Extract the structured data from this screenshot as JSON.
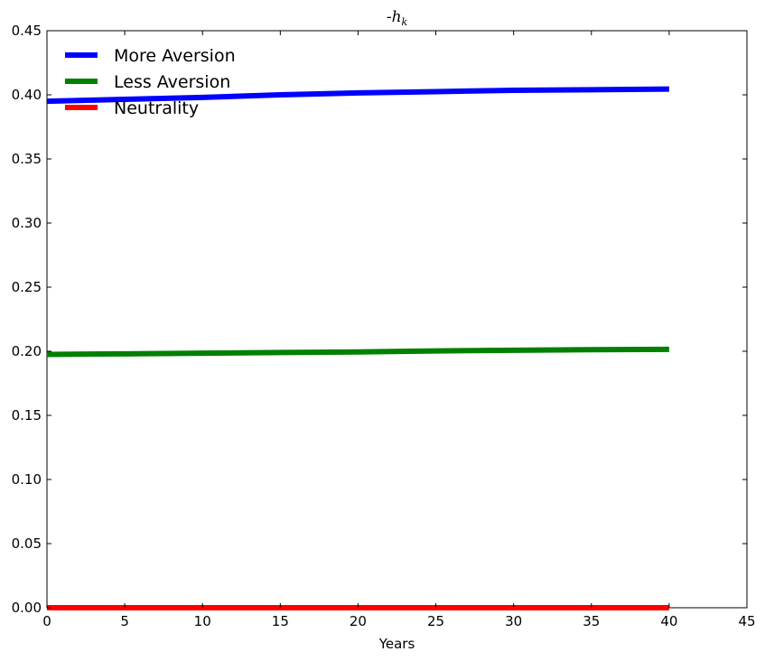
{
  "chart_data": {
    "type": "line",
    "title": "-h_k",
    "title_parts": {
      "prefix": "-",
      "base": "h",
      "subscript": "k"
    },
    "xlabel": "Years",
    "ylabel": "",
    "xlim": [
      0,
      45
    ],
    "ylim": [
      0,
      0.45
    ],
    "xticks": [
      0,
      5,
      10,
      15,
      20,
      25,
      30,
      35,
      40,
      45
    ],
    "yticks": [
      0.0,
      0.05,
      0.1,
      0.15,
      0.2,
      0.25,
      0.3,
      0.35,
      0.4,
      0.45
    ],
    "xtick_labels": [
      "0",
      "5",
      "10",
      "15",
      "20",
      "25",
      "30",
      "35",
      "40",
      "45"
    ],
    "ytick_labels": [
      "0.00",
      "0.05",
      "0.10",
      "0.15",
      "0.20",
      "0.25",
      "0.30",
      "0.35",
      "0.40",
      "0.45"
    ],
    "grid": false,
    "legend_position": "top-left",
    "x": [
      0,
      5,
      10,
      15,
      20,
      25,
      30,
      35,
      40
    ],
    "series": [
      {
        "name": "More Aversion",
        "color": "#0000ff",
        "values": [
          0.395,
          0.3965,
          0.398,
          0.4,
          0.4015,
          0.4025,
          0.4035,
          0.404,
          0.4045
        ]
      },
      {
        "name": "Less Aversion",
        "color": "#008000",
        "values": [
          0.1975,
          0.198,
          0.1985,
          0.199,
          0.1995,
          0.2003,
          0.2008,
          0.2012,
          0.2015
        ]
      },
      {
        "name": "Neutrality",
        "color": "#ff0000",
        "values": [
          0,
          0,
          0,
          0,
          0,
          0,
          0,
          0,
          0
        ]
      }
    ]
  }
}
